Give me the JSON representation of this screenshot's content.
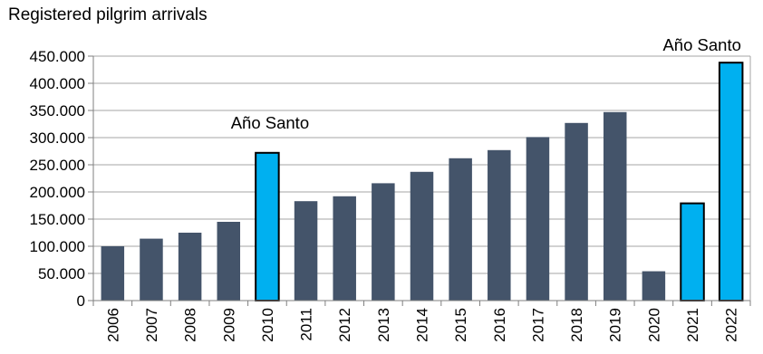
{
  "chart_data": {
    "type": "bar",
    "title": "Registered pilgrim arrivals",
    "xlabel": "",
    "ylabel": "",
    "ylim": [
      0,
      450000
    ],
    "yticks": [
      0,
      50000,
      100000,
      150000,
      200000,
      250000,
      300000,
      350000,
      400000,
      450000
    ],
    "ytick_labels": [
      "0",
      "50.000",
      "100.000",
      "150.000",
      "200.000",
      "250.000",
      "300.000",
      "350.000",
      "400.000",
      "450.000"
    ],
    "grid": true,
    "categories": [
      "2006",
      "2007",
      "2008",
      "2009",
      "2010",
      "2011",
      "2012",
      "2013",
      "2014",
      "2015",
      "2016",
      "2017",
      "2018",
      "2019",
      "2020",
      "2021",
      "2022"
    ],
    "values": [
      100000,
      114000,
      125000,
      145000,
      272000,
      183000,
      192000,
      216000,
      237000,
      262000,
      277000,
      301000,
      327000,
      347000,
      54000,
      179000,
      438000
    ],
    "colors": {
      "default": "#44546a",
      "holy_year": "#00b0f0",
      "holy_year_indices": [
        4,
        15,
        16
      ]
    },
    "annotations": [
      {
        "text": "Año Santo",
        "category": "2010"
      },
      {
        "text": "Año Santo",
        "category": "2022"
      }
    ]
  }
}
